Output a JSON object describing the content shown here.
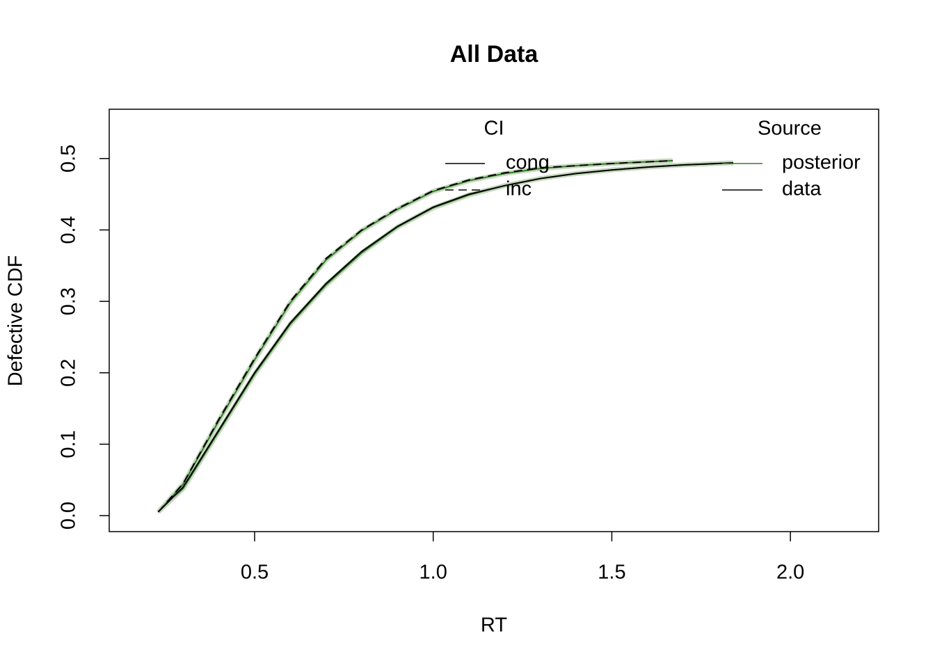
{
  "chart_data": {
    "type": "line",
    "title": "All Data",
    "x_label": "RT",
    "y_label": "Defective CDF",
    "xlim": [
      0.093,
      2.247
    ],
    "ylim": [
      -0.0224,
      0.569
    ],
    "xticks": [
      0.5,
      {
        "value": 1,
        "label": "1.0"
      },
      1.5,
      {
        "value": 2,
        "label": "2.0"
      }
    ],
    "yticks": [
      {
        "value": 0,
        "label": "0.0"
      },
      0.1,
      0.2,
      0.3,
      0.4,
      0.5
    ],
    "series": [
      {
        "color": "#2e7d22",
        "dash": "solid",
        "x": [
          0.23,
          0.3,
          0.4,
          0.5,
          0.6,
          0.7,
          0.8,
          0.9,
          1.0,
          1.1,
          1.2,
          1.3,
          1.4,
          1.5,
          1.6,
          1.7,
          1.84
        ],
        "values": [
          0.005,
          0.038,
          0.118,
          0.198,
          0.268,
          0.323,
          0.368,
          0.404,
          0.431,
          0.449,
          0.462,
          0.472,
          0.479,
          0.484,
          0.488,
          0.491,
          0.494
        ]
      },
      {
        "color": "#2e7d22",
        "dash": "solid",
        "x": [
          0.23,
          0.3,
          0.4,
          0.5,
          0.6,
          0.7,
          0.8,
          0.9,
          1.0,
          1.1,
          1.2,
          1.3,
          1.4,
          1.5,
          1.67
        ],
        "values": [
          0.005,
          0.044,
          0.133,
          0.218,
          0.298,
          0.358,
          0.399,
          0.429,
          0.454,
          0.469,
          0.479,
          0.486,
          0.49,
          0.493,
          0.497
        ]
      },
      {
        "color": "#000000",
        "dash": "solid",
        "x": [
          0.23,
          0.3,
          0.4,
          0.5,
          0.6,
          0.7,
          0.8,
          0.9,
          1.0,
          1.1,
          1.2,
          1.3,
          1.4,
          1.5,
          1.6,
          1.7,
          1.84
        ],
        "values": [
          0.005,
          0.04,
          0.12,
          0.2,
          0.27,
          0.325,
          0.37,
          0.405,
          0.432,
          0.45,
          0.462,
          0.472,
          0.479,
          0.484,
          0.488,
          0.491,
          0.494
        ]
      },
      {
        "color": "#000000",
        "dash": "dashed",
        "x": [
          0.23,
          0.3,
          0.4,
          0.5,
          0.6,
          0.7,
          0.8,
          0.9,
          1.0,
          1.1,
          1.2,
          1.3,
          1.4,
          1.5,
          1.67
        ],
        "values": [
          0.005,
          0.045,
          0.135,
          0.22,
          0.3,
          0.36,
          0.4,
          0.43,
          0.455,
          0.47,
          0.48,
          0.487,
          0.49,
          0.493,
          0.497
        ]
      }
    ],
    "legends": [
      {
        "title": "CI",
        "items": [
          {
            "label": "cong",
            "color": "#000000",
            "dash": "solid"
          },
          {
            "label": "inc",
            "color": "#000000",
            "dash": "dashed"
          }
        ]
      },
      {
        "title": "Source",
        "items": [
          {
            "label": "posterior",
            "color": "#2e7d22",
            "dash": "solid"
          },
          {
            "label": "data",
            "color": "#000000",
            "dash": "solid"
          }
        ]
      }
    ]
  }
}
